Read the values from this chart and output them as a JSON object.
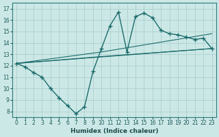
{
  "title": "",
  "xlabel": "Humidex (Indice chaleur)",
  "ylabel": "",
  "bg_color": "#cce8e6",
  "grid_color": "#aacfcf",
  "line_color": "#1a6b6b",
  "x_ticks": [
    0,
    1,
    2,
    3,
    4,
    5,
    6,
    7,
    8,
    9,
    10,
    11,
    12,
    13,
    14,
    15,
    16,
    17,
    18,
    19,
    20,
    21,
    22,
    23
  ],
  "y_ticks": [
    8,
    9,
    10,
    11,
    12,
    13,
    14,
    15,
    16,
    17
  ],
  "ylim": [
    7.5,
    17.5
  ],
  "xlim": [
    -0.5,
    23.5
  ],
  "line1_x": [
    0,
    1,
    2,
    3,
    4,
    5,
    6,
    7,
    8,
    9,
    10,
    11,
    12,
    13,
    14,
    15,
    16,
    17,
    18,
    19,
    20,
    21,
    22,
    23
  ],
  "line1_y": [
    12.2,
    11.9,
    11.4,
    11.0,
    10.0,
    9.2,
    8.5,
    7.8,
    8.4,
    11.5,
    13.5,
    15.5,
    16.7,
    13.2,
    16.3,
    16.6,
    16.2,
    15.1,
    14.8,
    14.7,
    14.5,
    14.3,
    14.4,
    13.5
  ],
  "line2_x": [
    0,
    23
  ],
  "line2_y": [
    12.2,
    13.5
  ],
  "line3_x": [
    0,
    10,
    23
  ],
  "line3_y": [
    12.2,
    12.8,
    13.5
  ],
  "line4_x": [
    0,
    10,
    23
  ],
  "line4_y": [
    12.2,
    13.2,
    14.8
  ]
}
